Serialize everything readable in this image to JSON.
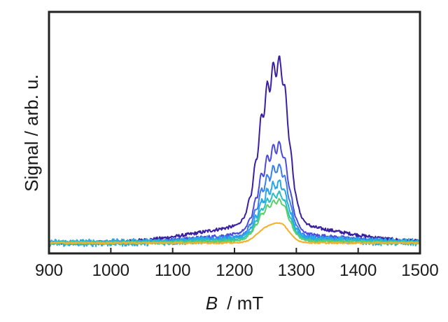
{
  "chart_data": {
    "type": "line",
    "xlabel_var": "B",
    "xlabel_unit": "/ mT",
    "ylabel": "Signal / arb. u.",
    "xlim": [
      900,
      1500
    ],
    "ylim": [
      0,
      1
    ],
    "x_ticks": [
      900,
      1000,
      1100,
      1200,
      1300,
      1400,
      1500
    ],
    "y_ticks_shown": false,
    "grid": false,
    "legend": "none",
    "series": [
      {
        "color": "#3a1fa0",
        "baseline": 0.01,
        "wing_amp": 0.09,
        "peak_amp": 0.88,
        "osc_amp": 0.05,
        "noise": 0.008
      },
      {
        "color": "#4a4adf",
        "baseline": 0.01,
        "wing_amp": 0.045,
        "peak_amp": 0.48,
        "osc_amp": 0.03,
        "noise": 0.008
      },
      {
        "color": "#3a7ef0",
        "baseline": 0.01,
        "wing_amp": 0.03,
        "peak_amp": 0.38,
        "osc_amp": 0.025,
        "noise": 0.01
      },
      {
        "color": "#29a8e8",
        "baseline": 0.01,
        "wing_amp": 0.022,
        "peak_amp": 0.3,
        "osc_amp": 0.02,
        "noise": 0.018
      },
      {
        "color": "#2bc0c0",
        "baseline": 0.01,
        "wing_amp": 0.015,
        "peak_amp": 0.25,
        "osc_amp": 0.015,
        "noise": 0.01
      },
      {
        "color": "#5ccf6a",
        "baseline": 0.01,
        "wing_amp": 0.01,
        "peak_amp": 0.22,
        "osc_amp": 0.012,
        "noise": 0.006
      },
      {
        "color": "#f5b02a",
        "baseline": 0.01,
        "wing_amp": 0.0,
        "peak_amp": 0.11,
        "osc_amp": 0.0,
        "noise": 0.004
      }
    ]
  }
}
